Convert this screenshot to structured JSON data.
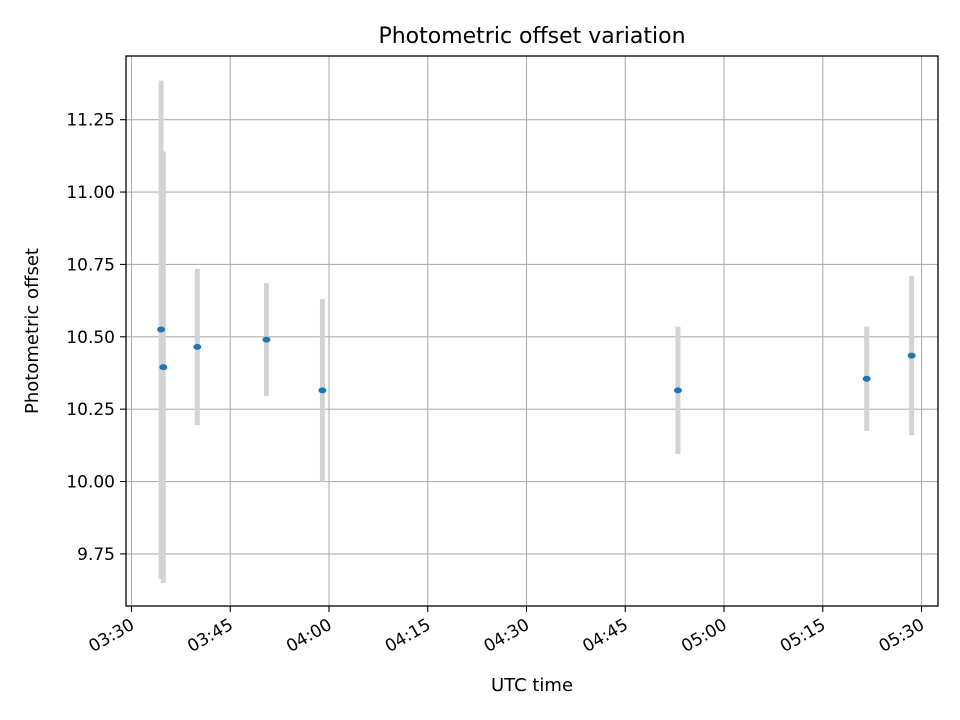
{
  "chart_data": {
    "type": "scatter",
    "title": "Photometric offset variation",
    "xlabel": "UTC time",
    "ylabel": "Photometric offset",
    "x_ticks": [
      "03:30",
      "03:45",
      "04:00",
      "04:15",
      "04:30",
      "04:45",
      "05:00",
      "05:15",
      "05:30"
    ],
    "y_ticks": [
      "9.75",
      "10.00",
      "10.25",
      "10.50",
      "10.75",
      "11.00",
      "11.25"
    ],
    "xlim": [
      "03:29:10",
      "05:32:30"
    ],
    "ylim": [
      9.57,
      11.47
    ],
    "grid": true,
    "marker_color": "#1f77b4",
    "errorbar_color": "#d3d3d3",
    "points": [
      {
        "x": "03:34:30",
        "y": 10.525,
        "yerr": 0.86
      },
      {
        "x": "03:34:50",
        "y": 10.395,
        "yerr": 0.745
      },
      {
        "x": "03:40:00",
        "y": 10.465,
        "yerr": 0.27
      },
      {
        "x": "03:50:30",
        "y": 10.49,
        "yerr": 0.195
      },
      {
        "x": "03:59:00",
        "y": 10.315,
        "yerr": 0.315
      },
      {
        "x": "04:53:00",
        "y": 10.315,
        "yerr": 0.22
      },
      {
        "x": "05:21:40",
        "y": 10.355,
        "yerr": 0.18
      },
      {
        "x": "05:28:30",
        "y": 10.435,
        "yerr": 0.275
      }
    ]
  }
}
